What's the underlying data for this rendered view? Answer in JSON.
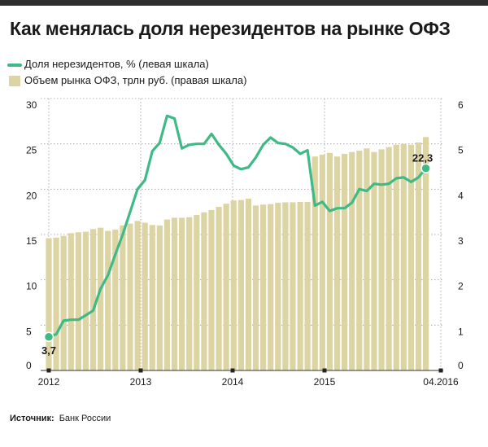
{
  "title": "Как менялась доля нерезидентов на рынке ОФЗ",
  "source_label": "Источник:",
  "source_text": "Банк России",
  "colors": {
    "line": "#3dba85",
    "bar": "#ddd4a3",
    "grid": "#9a9a9a",
    "text": "#1a1a1a"
  },
  "chart_data": {
    "type": "bar+line",
    "legend_placement": "top-left",
    "grid": true,
    "x_tick_labels": [
      "2012",
      "2013",
      "2014",
      "2015",
      "04.2016"
    ],
    "left_axis": {
      "range": [
        0,
        30
      ],
      "ticks": [
        0,
        5,
        10,
        15,
        20,
        25,
        30
      ]
    },
    "right_axis": {
      "range": [
        0,
        6
      ],
      "ticks": [
        0,
        1,
        2,
        3,
        4,
        5,
        6
      ]
    },
    "series": [
      {
        "name": "Доля нерезидентов, % (левая шкала)",
        "type": "line",
        "axis": "left",
        "unit": "%",
        "values": [
          3.7,
          4.0,
          5.5,
          5.6,
          5.6,
          6.1,
          6.6,
          9.0,
          10.5,
          12.8,
          15.0,
          17.5,
          20.0,
          21.0,
          24.2,
          25.1,
          28.1,
          27.8,
          24.5,
          24.9,
          25.0,
          25.0,
          26.1,
          24.9,
          23.9,
          22.6,
          22.2,
          22.4,
          23.5,
          24.9,
          25.7,
          25.1,
          25.0,
          24.6,
          23.9,
          24.3,
          18.2,
          18.6,
          17.6,
          17.9,
          17.9,
          18.5,
          20.0,
          19.8,
          20.6,
          20.5,
          20.6,
          21.2,
          21.3,
          20.8,
          21.3,
          22.3
        ]
      },
      {
        "name": "Объем рынка ОФЗ, трлн руб. (правая шкала)",
        "type": "bar",
        "axis": "right",
        "unit": "трлн руб.",
        "values": [
          2.92,
          2.93,
          2.97,
          3.03,
          3.05,
          3.06,
          3.12,
          3.15,
          3.08,
          3.11,
          3.2,
          3.24,
          3.3,
          3.26,
          3.21,
          3.2,
          3.33,
          3.37,
          3.37,
          3.38,
          3.43,
          3.49,
          3.54,
          3.61,
          3.68,
          3.75,
          3.76,
          3.79,
          3.64,
          3.66,
          3.67,
          3.7,
          3.71,
          3.71,
          3.72,
          3.72,
          4.72,
          4.76,
          4.8,
          4.72,
          4.78,
          4.82,
          4.85,
          4.9,
          4.82,
          4.88,
          4.93,
          4.98,
          5.0,
          4.98,
          5.03,
          5.15
        ]
      }
    ],
    "annotations": [
      {
        "text": "3,7",
        "series": 0,
        "index": 0
      },
      {
        "text": "22,3",
        "series": 0,
        "index": 51
      }
    ]
  }
}
